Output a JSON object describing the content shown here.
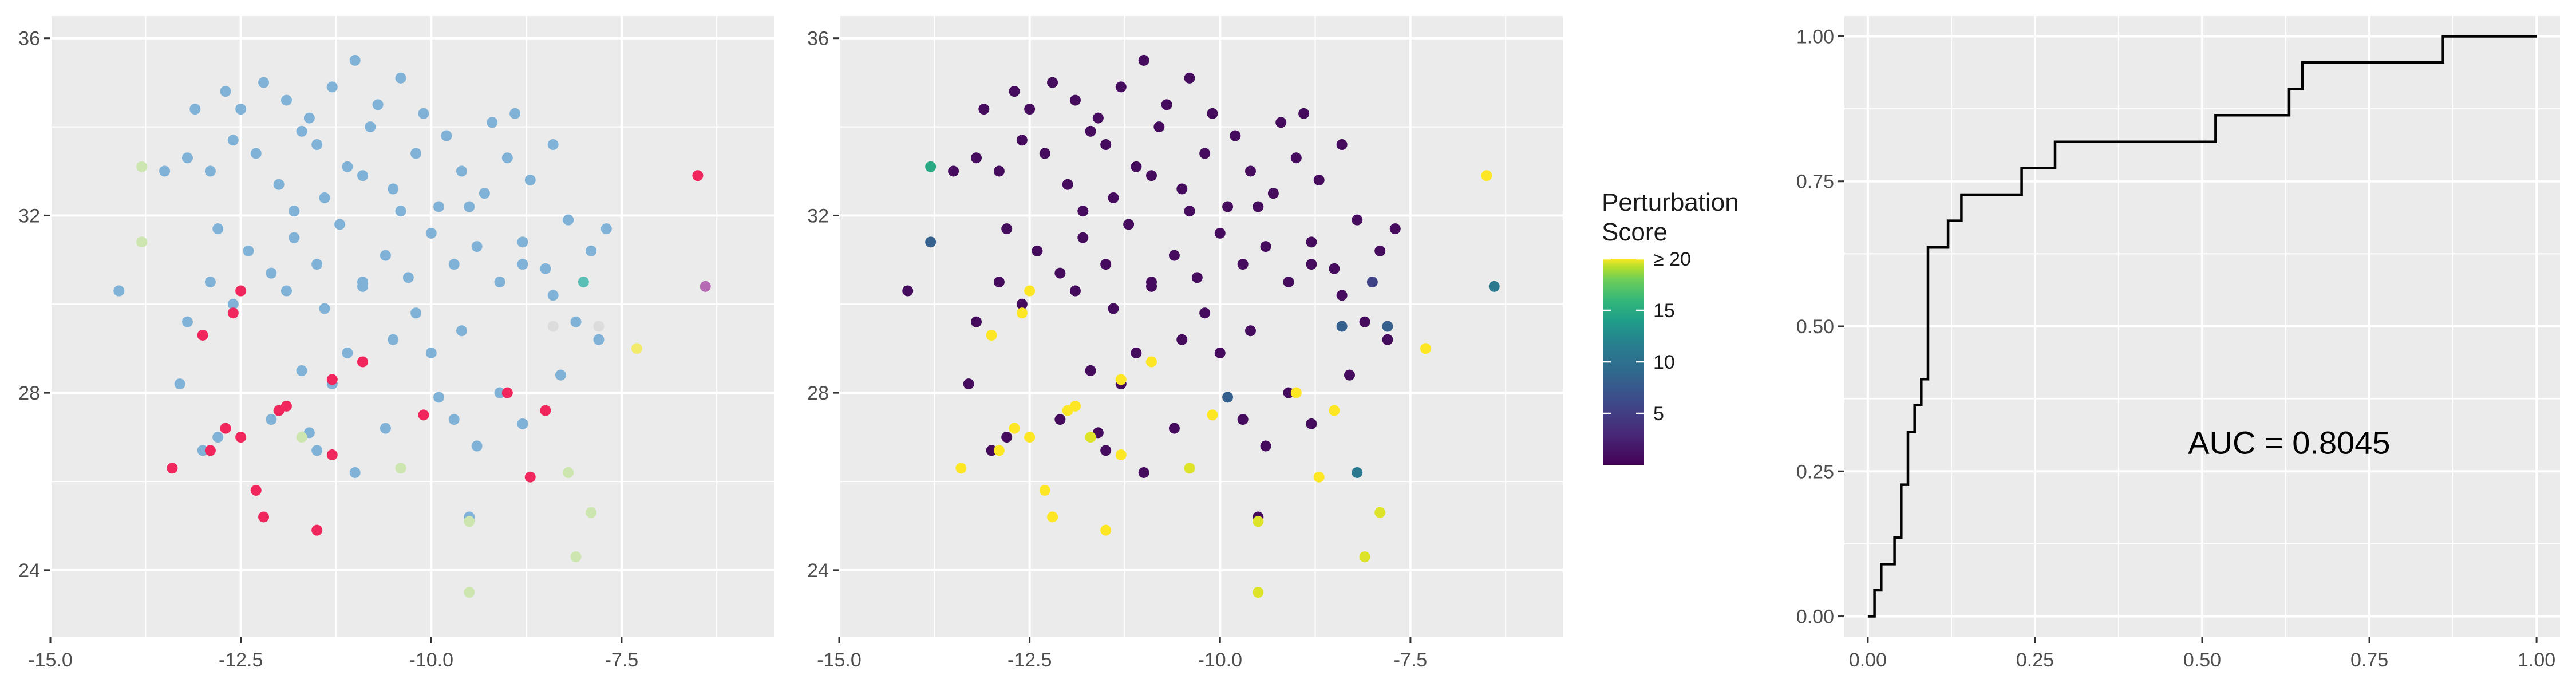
{
  "chart_data": [
    {
      "type": "scatter",
      "x_ticks": [
        "-15.0",
        "-12.5",
        "-10.0",
        "-7.5"
      ],
      "y_ticks": [
        "24",
        "28",
        "32",
        "36"
      ],
      "xlim": [
        -15.0,
        -5.5
      ],
      "ylim": [
        22.5,
        36.5
      ],
      "grid": true,
      "point_colors": {
        "blue": "#7fb2d6",
        "red": "#f0265d",
        "light_green": "#cde6b0",
        "purple": "#b36ab3",
        "teal": "#5bbfb5",
        "light_gray": "#dcdcdc",
        "yellow": "#f1ea6a"
      },
      "points": [
        {
          "x": -13.2,
          "y": 33.3,
          "c": "blue"
        },
        {
          "x": -12.9,
          "y": 33.0,
          "c": "blue"
        },
        {
          "x": -12.6,
          "y": 33.7,
          "c": "blue"
        },
        {
          "x": -12.3,
          "y": 33.4,
          "c": "blue"
        },
        {
          "x": -12.0,
          "y": 32.7,
          "c": "blue"
        },
        {
          "x": -11.7,
          "y": 33.9,
          "c": "blue"
        },
        {
          "x": -11.4,
          "y": 32.4,
          "c": "blue"
        },
        {
          "x": -11.1,
          "y": 33.1,
          "c": "blue"
        },
        {
          "x": -10.8,
          "y": 34.0,
          "c": "blue"
        },
        {
          "x": -10.5,
          "y": 32.6,
          "c": "blue"
        },
        {
          "x": -10.2,
          "y": 33.4,
          "c": "blue"
        },
        {
          "x": -9.9,
          "y": 32.2,
          "c": "blue"
        },
        {
          "x": -9.6,
          "y": 33.0,
          "c": "blue"
        },
        {
          "x": -9.3,
          "y": 32.5,
          "c": "blue"
        },
        {
          "x": -9.0,
          "y": 33.3,
          "c": "blue"
        },
        {
          "x": -8.7,
          "y": 32.8,
          "c": "blue"
        },
        {
          "x": -8.4,
          "y": 33.6,
          "c": "blue"
        },
        {
          "x": -12.8,
          "y": 31.7,
          "c": "blue"
        },
        {
          "x": -12.4,
          "y": 31.2,
          "c": "blue"
        },
        {
          "x": -12.1,
          "y": 30.7,
          "c": "blue"
        },
        {
          "x": -11.8,
          "y": 31.5,
          "c": "blue"
        },
        {
          "x": -11.5,
          "y": 30.9,
          "c": "blue"
        },
        {
          "x": -11.2,
          "y": 31.8,
          "c": "blue"
        },
        {
          "x": -10.9,
          "y": 30.4,
          "c": "blue"
        },
        {
          "x": -10.6,
          "y": 31.1,
          "c": "blue"
        },
        {
          "x": -10.3,
          "y": 30.6,
          "c": "blue"
        },
        {
          "x": -10.0,
          "y": 31.6,
          "c": "blue"
        },
        {
          "x": -9.7,
          "y": 30.9,
          "c": "blue"
        },
        {
          "x": -9.4,
          "y": 31.3,
          "c": "blue"
        },
        {
          "x": -9.1,
          "y": 30.5,
          "c": "blue"
        },
        {
          "x": -8.8,
          "y": 31.4,
          "c": "blue"
        },
        {
          "x": -8.5,
          "y": 30.8,
          "c": "blue"
        },
        {
          "x": -8.2,
          "y": 31.9,
          "c": "blue"
        },
        {
          "x": -7.9,
          "y": 31.2,
          "c": "blue"
        },
        {
          "x": -7.7,
          "y": 31.7,
          "c": "blue"
        },
        {
          "x": -12.5,
          "y": 34.4,
          "c": "blue"
        },
        {
          "x": -12.2,
          "y": 35.0,
          "c": "blue"
        },
        {
          "x": -11.9,
          "y": 34.6,
          "c": "blue"
        },
        {
          "x": -11.6,
          "y": 34.2,
          "c": "blue"
        },
        {
          "x": -11.3,
          "y": 34.9,
          "c": "blue"
        },
        {
          "x": -11.0,
          "y": 35.5,
          "c": "blue"
        },
        {
          "x": -10.7,
          "y": 34.5,
          "c": "blue"
        },
        {
          "x": -10.4,
          "y": 35.1,
          "c": "blue"
        },
        {
          "x": -10.1,
          "y": 34.3,
          "c": "blue"
        },
        {
          "x": -9.2,
          "y": 34.1,
          "c": "blue"
        },
        {
          "x": -8.9,
          "y": 34.3,
          "c": "blue"
        },
        {
          "x": -13.5,
          "y": 33.0,
          "c": "blue"
        },
        {
          "x": -13.1,
          "y": 34.4,
          "c": "blue"
        },
        {
          "x": -12.7,
          "y": 34.8,
          "c": "blue"
        },
        {
          "x": -11.5,
          "y": 33.6,
          "c": "blue"
        },
        {
          "x": -10.9,
          "y": 32.9,
          "c": "blue"
        },
        {
          "x": -10.4,
          "y": 32.1,
          "c": "blue"
        },
        {
          "x": -9.8,
          "y": 33.8,
          "c": "blue"
        },
        {
          "x": -9.5,
          "y": 32.2,
          "c": "blue"
        },
        {
          "x": -12.9,
          "y": 30.5,
          "c": "blue"
        },
        {
          "x": -12.6,
          "y": 30.0,
          "c": "blue"
        },
        {
          "x": -11.9,
          "y": 30.3,
          "c": "blue"
        },
        {
          "x": -11.4,
          "y": 29.9,
          "c": "blue"
        },
        {
          "x": -10.2,
          "y": 29.8,
          "c": "blue"
        },
        {
          "x": -9.6,
          "y": 29.4,
          "c": "blue"
        },
        {
          "x": -8.4,
          "y": 30.2,
          "c": "blue"
        },
        {
          "x": -8.1,
          "y": 29.6,
          "c": "blue"
        },
        {
          "x": -14.1,
          "y": 30.3,
          "c": "blue"
        },
        {
          "x": -13.2,
          "y": 29.6,
          "c": "blue"
        },
        {
          "x": -13.3,
          "y": 28.2,
          "c": "blue"
        },
        {
          "x": -11.7,
          "y": 28.5,
          "c": "blue"
        },
        {
          "x": -11.3,
          "y": 28.2,
          "c": "blue"
        },
        {
          "x": -11.1,
          "y": 28.9,
          "c": "blue"
        },
        {
          "x": -10.5,
          "y": 29.2,
          "c": "blue"
        },
        {
          "x": -10.0,
          "y": 28.9,
          "c": "blue"
        },
        {
          "x": -9.9,
          "y": 27.9,
          "c": "blue"
        },
        {
          "x": -9.1,
          "y": 28.0,
          "c": "blue"
        },
        {
          "x": -8.3,
          "y": 28.4,
          "c": "blue"
        },
        {
          "x": -7.8,
          "y": 29.2,
          "c": "blue"
        },
        {
          "x": -12.1,
          "y": 27.4,
          "c": "blue"
        },
        {
          "x": -11.6,
          "y": 27.1,
          "c": "blue"
        },
        {
          "x": -11.5,
          "y": 26.7,
          "c": "blue"
        },
        {
          "x": -11.0,
          "y": 26.2,
          "c": "blue"
        },
        {
          "x": -10.6,
          "y": 27.2,
          "c": "blue"
        },
        {
          "x": -9.7,
          "y": 27.4,
          "c": "blue"
        },
        {
          "x": -9.4,
          "y": 26.8,
          "c": "blue"
        },
        {
          "x": -8.8,
          "y": 27.3,
          "c": "blue"
        },
        {
          "x": -9.5,
          "y": 25.2,
          "c": "blue"
        },
        {
          "x": -12.8,
          "y": 27.0,
          "c": "blue"
        },
        {
          "x": -13.0,
          "y": 26.7,
          "c": "blue"
        },
        {
          "x": -10.9,
          "y": 30.5,
          "c": "blue"
        },
        {
          "x": -11.8,
          "y": 32.1,
          "c": "blue"
        },
        {
          "x": -8.8,
          "y": 30.9,
          "c": "blue"
        },
        {
          "x": -6.5,
          "y": 32.9,
          "c": "red"
        },
        {
          "x": -12.5,
          "y": 30.3,
          "c": "red"
        },
        {
          "x": -12.6,
          "y": 29.8,
          "c": "red"
        },
        {
          "x": -13.0,
          "y": 29.3,
          "c": "red"
        },
        {
          "x": -10.9,
          "y": 28.7,
          "c": "red"
        },
        {
          "x": -11.3,
          "y": 28.3,
          "c": "red"
        },
        {
          "x": -9.0,
          "y": 28.0,
          "c": "red"
        },
        {
          "x": -8.5,
          "y": 27.6,
          "c": "red"
        },
        {
          "x": -11.9,
          "y": 27.7,
          "c": "red"
        },
        {
          "x": -12.0,
          "y": 27.6,
          "c": "red"
        },
        {
          "x": -10.1,
          "y": 27.5,
          "c": "red"
        },
        {
          "x": -12.7,
          "y": 27.2,
          "c": "red"
        },
        {
          "x": -12.5,
          "y": 27.0,
          "c": "red"
        },
        {
          "x": -12.9,
          "y": 26.7,
          "c": "red"
        },
        {
          "x": -11.3,
          "y": 26.6,
          "c": "red"
        },
        {
          "x": -13.4,
          "y": 26.3,
          "c": "red"
        },
        {
          "x": -8.7,
          "y": 26.1,
          "c": "red"
        },
        {
          "x": -12.3,
          "y": 25.8,
          "c": "red"
        },
        {
          "x": -12.2,
          "y": 25.2,
          "c": "red"
        },
        {
          "x": -11.5,
          "y": 24.9,
          "c": "red"
        },
        {
          "x": -13.8,
          "y": 33.1,
          "c": "light_green"
        },
        {
          "x": -13.8,
          "y": 31.4,
          "c": "light_green"
        },
        {
          "x": -11.7,
          "y": 27.0,
          "c": "light_green"
        },
        {
          "x": -10.4,
          "y": 26.3,
          "c": "light_green"
        },
        {
          "x": -8.2,
          "y": 26.2,
          "c": "light_green"
        },
        {
          "x": -9.5,
          "y": 25.1,
          "c": "light_green"
        },
        {
          "x": -7.9,
          "y": 25.3,
          "c": "light_green"
        },
        {
          "x": -9.5,
          "y": 23.5,
          "c": "light_green"
        },
        {
          "x": -8.1,
          "y": 24.3,
          "c": "light_green"
        },
        {
          "x": -6.4,
          "y": 30.4,
          "c": "purple"
        },
        {
          "x": -8.0,
          "y": 30.5,
          "c": "teal"
        },
        {
          "x": -8.4,
          "y": 29.5,
          "c": "light_gray"
        },
        {
          "x": -7.8,
          "y": 29.5,
          "c": "light_gray"
        },
        {
          "x": -7.3,
          "y": 29.0,
          "c": "yellow"
        }
      ]
    },
    {
      "type": "scatter",
      "x_ticks": [
        "-15.0",
        "-12.5",
        "-10.0",
        "-7.5"
      ],
      "y_ticks": [
        "24",
        "28",
        "32",
        "36"
      ],
      "xlim": [
        -15.0,
        -5.5
      ],
      "ylim": [
        22.5,
        36.5
      ],
      "grid": true,
      "legend": {
        "title": "Perturbation\nScore",
        "ticks": [
          "≥ 20",
          "15",
          "10",
          "5"
        ],
        "tick_values": [
          20,
          15,
          10,
          5
        ],
        "range": [
          0,
          20
        ],
        "palette": "viridis",
        "placement": "right"
      }
    },
    {
      "type": "line",
      "x_ticks": [
        "0.00",
        "0.25",
        "0.50",
        "0.75",
        "1.00"
      ],
      "y_ticks": [
        "0.00",
        "0.25",
        "0.50",
        "0.75",
        "1.00"
      ],
      "xlim": [
        -0.035,
        1.035
      ],
      "ylim": [
        -0.035,
        1.035
      ],
      "grid": true,
      "annotation": "AUC = 0.8045",
      "annotation_at": [
        0.63,
        0.3
      ],
      "x": [
        0.0,
        0.01,
        0.01,
        0.02,
        0.02,
        0.04,
        0.04,
        0.05,
        0.05,
        0.06,
        0.06,
        0.07,
        0.07,
        0.08,
        0.08,
        0.09,
        0.09,
        0.12,
        0.12,
        0.14,
        0.14,
        0.23,
        0.23,
        0.28,
        0.28,
        0.52,
        0.52,
        0.63,
        0.63,
        0.65,
        0.65,
        0.86,
        0.86,
        1.0
      ],
      "y": [
        0.0,
        0.0,
        0.045,
        0.045,
        0.09,
        0.09,
        0.136,
        0.136,
        0.227,
        0.227,
        0.318,
        0.318,
        0.364,
        0.364,
        0.409,
        0.409,
        0.636,
        0.636,
        0.682,
        0.682,
        0.727,
        0.727,
        0.773,
        0.773,
        0.818,
        0.818,
        0.864,
        0.864,
        0.909,
        0.909,
        0.955,
        0.955,
        1.0,
        1.0
      ]
    }
  ]
}
